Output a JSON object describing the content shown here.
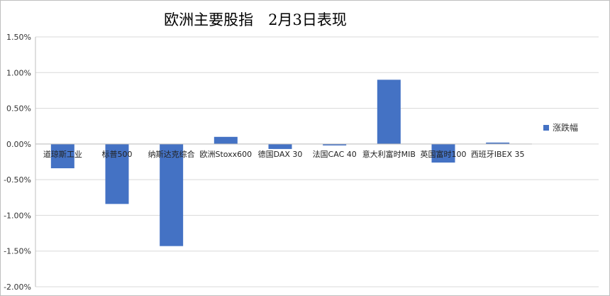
{
  "chart_data": {
    "type": "bar",
    "title": "欧洲主要股指　2月3日表现",
    "categories": [
      "道琼斯工业",
      "标普500",
      "纳斯达克综合",
      "欧洲Stoxx600",
      "德国DAX 30",
      "法国CAC 40",
      "意大利富时MIB",
      "英国富时100",
      "西班牙IBEX 35"
    ],
    "series": [
      {
        "name": "涨跌幅",
        "values": [
          -0.34,
          -0.84,
          -1.43,
          0.1,
          -0.07,
          -0.02,
          0.9,
          -0.26,
          0.02
        ]
      }
    ],
    "ylim": [
      -2.0,
      1.5
    ],
    "yticks": [
      1.5,
      1.0,
      0.5,
      0.0,
      -0.5,
      -1.0,
      -1.5,
      -2.0
    ],
    "ytick_labels": [
      "1.50%",
      "1.00%",
      "0.50%",
      "0.00%",
      "-0.50%",
      "-1.00%",
      "-1.50%",
      "-2.00%"
    ],
    "grid": true,
    "legend_position": "right",
    "bar_color": "#4472c4",
    "grid_color": "#d9d9d9"
  }
}
